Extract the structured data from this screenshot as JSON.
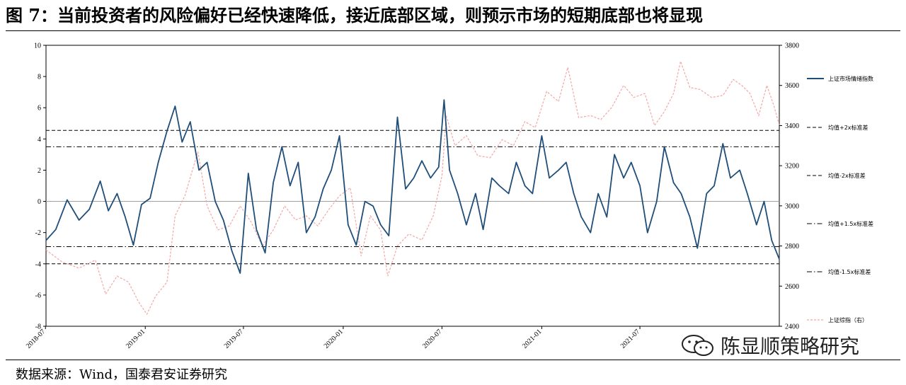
{
  "title": "图 7：当前投资者的风险偏好已经快速降低，接近底部区域，则预示市场的短期底部也将显现",
  "source": "数据来源：Wind，国泰君安证券研究",
  "watermark": "陈显顺策略研究",
  "chart_data": {
    "type": "line",
    "title": "",
    "xlabel": "",
    "ylabel": "",
    "ylim": [
      -8,
      10
    ],
    "y2lim": [
      2400,
      3800
    ],
    "yticks": [
      "10",
      "8",
      "6",
      "4",
      "2",
      "0",
      "-2",
      "-4",
      "-6",
      "-8"
    ],
    "y2ticks": [
      "3800",
      "3600",
      "3400",
      "3200",
      "3000",
      "2800",
      "2600",
      "2400"
    ],
    "x_ticks": [
      "2018-07",
      "2019-01",
      "2019-07",
      "2020-01",
      "2020-07",
      "2021-01",
      "2021-07"
    ],
    "x_range": [
      "2018-07-02",
      "2022-03-15"
    ],
    "grid": false,
    "legend_position": "right",
    "colors": {
      "sentiment": "#1f4e79",
      "index": "#f4a6a6",
      "bands": "#000000",
      "zero": "#a0a0a0"
    },
    "reference_lines": [
      {
        "name": "均值+2x标准差",
        "value": 4.55,
        "style": "dashed"
      },
      {
        "name": "均值-2x标准差",
        "value": -4.0,
        "style": "dashed"
      },
      {
        "name": "均值+1.5x标准差",
        "value": 3.5,
        "style": "dashdot"
      },
      {
        "name": "均值-1.5x标准差",
        "value": -2.9,
        "style": "dashdot"
      }
    ],
    "series": [
      {
        "name": "上证市场情绪指数",
        "axis": "left",
        "x": [
          "2018-07-02",
          "2018-07-20",
          "2018-08-10",
          "2018-09-01",
          "2018-09-20",
          "2018-10-10",
          "2018-10-25",
          "2018-11-10",
          "2018-11-25",
          "2018-12-10",
          "2018-12-25",
          "2019-01-10",
          "2019-01-25",
          "2019-02-10",
          "2019-02-25",
          "2019-03-10",
          "2019-03-25",
          "2019-04-10",
          "2019-04-25",
          "2019-05-10",
          "2019-05-25",
          "2019-06-10",
          "2019-06-25",
          "2019-07-10",
          "2019-07-25",
          "2019-08-10",
          "2019-08-25",
          "2019-09-10",
          "2019-09-25",
          "2019-10-10",
          "2019-10-25",
          "2019-11-10",
          "2019-11-25",
          "2019-12-10",
          "2019-12-25",
          "2020-01-10",
          "2020-01-25",
          "2020-02-10",
          "2020-02-25",
          "2020-03-10",
          "2020-03-25",
          "2020-04-10",
          "2020-04-25",
          "2020-05-10",
          "2020-05-25",
          "2020-06-10",
          "2020-06-25",
          "2020-07-05",
          "2020-07-15",
          "2020-07-30",
          "2020-08-15",
          "2020-09-01",
          "2020-09-15",
          "2020-10-01",
          "2020-10-15",
          "2020-11-01",
          "2020-11-15",
          "2020-12-01",
          "2020-12-15",
          "2021-01-01",
          "2021-01-15",
          "2021-02-01",
          "2021-02-15",
          "2021-03-01",
          "2021-03-15",
          "2021-04-01",
          "2021-04-15",
          "2021-05-01",
          "2021-05-15",
          "2021-06-01",
          "2021-06-15",
          "2021-07-01",
          "2021-07-15",
          "2021-08-01",
          "2021-08-15",
          "2021-09-01",
          "2021-09-15",
          "2021-10-01",
          "2021-10-15",
          "2021-11-01",
          "2021-11-15",
          "2021-12-01",
          "2021-12-15",
          "2022-01-01",
          "2022-01-15",
          "2022-02-01",
          "2022-02-15",
          "2022-03-01",
          "2022-03-15"
        ],
        "values": [
          -2.5,
          -1.8,
          0.1,
          -1.2,
          -0.5,
          1.3,
          -0.6,
          0.5,
          -1.0,
          -2.8,
          -0.2,
          0.2,
          2.5,
          4.5,
          6.1,
          3.8,
          5.1,
          2.0,
          2.5,
          0.0,
          -1.2,
          -3.2,
          -4.6,
          1.8,
          -1.8,
          -3.3,
          1.2,
          3.5,
          1.0,
          2.5,
          -2.0,
          -1.0,
          0.8,
          2.0,
          4.2,
          -1.5,
          -2.8,
          0.0,
          -0.3,
          -1.5,
          -2.2,
          5.4,
          0.8,
          1.5,
          2.6,
          1.5,
          2.2,
          6.5,
          2.0,
          0.5,
          -1.5,
          0.5,
          -1.8,
          1.5,
          1.0,
          0.5,
          2.5,
          1.0,
          0.5,
          4.2,
          1.5,
          2.0,
          2.5,
          0.5,
          -1.0,
          -2.0,
          0.5,
          -1.0,
          3.0,
          1.5,
          2.5,
          1.0,
          -2.0,
          0.0,
          3.5,
          1.2,
          0.5,
          -1.0,
          -3.0,
          0.5,
          1.0,
          3.7,
          1.5,
          2.0,
          0.5,
          -1.5,
          0.0,
          -2.5,
          -3.7
        ]
      },
      {
        "name": "上证综指（右）",
        "axis": "right",
        "x": [
          "2018-07-02",
          "2018-08-01",
          "2018-09-01",
          "2018-10-01",
          "2018-10-20",
          "2018-11-10",
          "2018-12-01",
          "2018-12-20",
          "2019-01-04",
          "2019-01-20",
          "2019-02-10",
          "2019-02-25",
          "2019-03-15",
          "2019-04-08",
          "2019-04-25",
          "2019-05-15",
          "2019-06-05",
          "2019-06-25",
          "2019-07-15",
          "2019-08-05",
          "2019-08-25",
          "2019-09-15",
          "2019-10-05",
          "2019-10-25",
          "2019-11-15",
          "2019-12-05",
          "2019-12-25",
          "2020-01-14",
          "2020-02-03",
          "2020-02-20",
          "2020-03-10",
          "2020-03-23",
          "2020-04-10",
          "2020-05-01",
          "2020-05-25",
          "2020-06-15",
          "2020-07-01",
          "2020-07-09",
          "2020-07-25",
          "2020-08-15",
          "2020-09-05",
          "2020-09-28",
          "2020-10-20",
          "2020-11-10",
          "2020-12-01",
          "2020-12-20",
          "2021-01-10",
          "2021-02-01",
          "2021-02-18",
          "2021-03-10",
          "2021-04-01",
          "2021-04-20",
          "2021-05-10",
          "2021-06-01",
          "2021-06-20",
          "2021-07-10",
          "2021-07-28",
          "2021-08-15",
          "2021-09-01",
          "2021-09-14",
          "2021-10-01",
          "2021-10-20",
          "2021-11-10",
          "2021-12-01",
          "2021-12-20",
          "2022-01-05",
          "2022-01-20",
          "2022-02-05",
          "2022-02-20",
          "2022-03-05",
          "2022-03-15"
        ],
        "values": [
          2780,
          2720,
          2690,
          2730,
          2560,
          2650,
          2620,
          2520,
          2460,
          2550,
          2620,
          2950,
          3050,
          3270,
          3000,
          2880,
          2900,
          3000,
          2920,
          2800,
          2880,
          3000,
          2930,
          2950,
          2900,
          2980,
          3050,
          3090,
          2750,
          2950,
          2880,
          2650,
          2800,
          2860,
          2830,
          2950,
          3150,
          3450,
          3300,
          3350,
          3250,
          3240,
          3330,
          3300,
          3420,
          3390,
          3570,
          3520,
          3690,
          3440,
          3450,
          3430,
          3490,
          3600,
          3540,
          3560,
          3400,
          3470,
          3560,
          3720,
          3590,
          3580,
          3540,
          3550,
          3630,
          3600,
          3560,
          3450,
          3600,
          3500,
          3400
        ]
      }
    ]
  }
}
